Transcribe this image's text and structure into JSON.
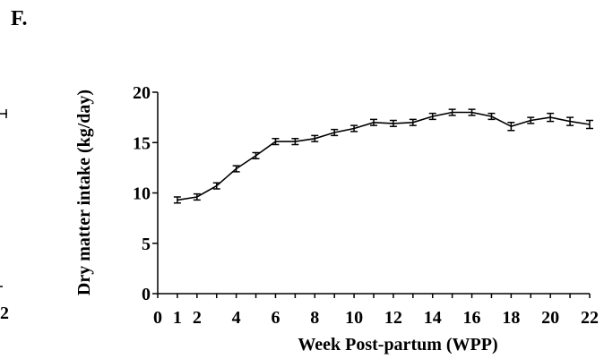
{
  "panel_label": "F.",
  "left_fragment": {
    "text": "2"
  },
  "chart_data": {
    "type": "line",
    "title": "",
    "xlabel": "Week Post-partum (WPP)",
    "ylabel": "Dry matter intake (kg/day)",
    "xlim": [
      0,
      22
    ],
    "ylim": [
      0,
      20
    ],
    "x_ticks": [
      0,
      1,
      2,
      4,
      6,
      8,
      10,
      12,
      14,
      16,
      18,
      20,
      22
    ],
    "y_ticks": [
      0,
      5,
      10,
      15,
      20
    ],
    "grid": false,
    "legend": "none",
    "series": [
      {
        "x": [
          1,
          2,
          3,
          4,
          5,
          6,
          7,
          8,
          9,
          10,
          11,
          12,
          13,
          14,
          15,
          16,
          17,
          18,
          19,
          20,
          21,
          22
        ],
        "y": [
          9.3,
          9.6,
          10.7,
          12.4,
          13.7,
          15.1,
          15.1,
          15.4,
          16.0,
          16.4,
          17.0,
          16.9,
          17.0,
          17.6,
          18.0,
          18.0,
          17.6,
          16.6,
          17.2,
          17.5,
          17.1,
          16.8
        ],
        "error": [
          0.3,
          0.3,
          0.3,
          0.3,
          0.3,
          0.3,
          0.3,
          0.3,
          0.3,
          0.3,
          0.3,
          0.3,
          0.3,
          0.3,
          0.3,
          0.3,
          0.3,
          0.4,
          0.3,
          0.4,
          0.4,
          0.4
        ]
      }
    ]
  }
}
